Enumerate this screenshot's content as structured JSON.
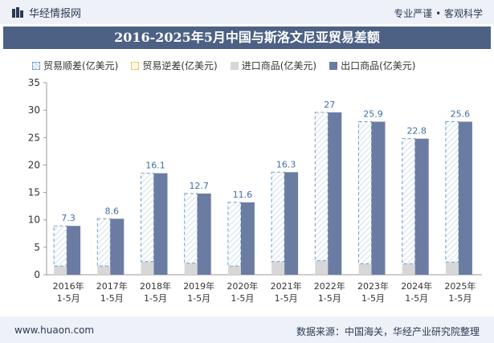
{
  "header": {
    "brand": "华经情报网",
    "slogan": "专业严谨 • 客观科学"
  },
  "footer": {
    "website": "www.huaon.com",
    "source": "数据来源：中国海关，华经产业研究院整理"
  },
  "colors": {
    "export": "#6b7ca3",
    "import": "#d7d7d7",
    "surplus_border": "#6aa0c8",
    "deficit_border": "#e0c46a",
    "label": "#3f6fa6",
    "title_bg": "#4d6185"
  },
  "chart_data": {
    "type": "bar",
    "title": "2016-2025年5月中国与斯洛文尼亚贸易差额",
    "categories": [
      "2016年\n1-5月",
      "2017年\n1-5月",
      "2018年\n1-5月",
      "2019年\n1-5月",
      "2020年\n1-5月",
      "2021年\n1-5月",
      "2022年\n1-5月",
      "2023年\n1-5月",
      "2024年\n1-5月",
      "2025年\n1-5月"
    ],
    "legend": [
      "贸易顺差(亿美元)",
      "贸易逆差(亿美元)",
      "进口商品(亿美元)",
      "出口商品(亿美元)"
    ],
    "series": [
      {
        "name": "贸易顺差(亿美元)",
        "values": [
          7.3,
          8.6,
          16.1,
          12.7,
          11.6,
          16.3,
          27,
          25.9,
          22.8,
          25.6
        ]
      },
      {
        "name": "贸易逆差(亿美元)",
        "values": [
          0,
          0,
          0,
          0,
          0,
          0,
          0,
          0,
          0,
          0
        ]
      },
      {
        "name": "进口商品(亿美元)",
        "values": [
          1.6,
          1.6,
          2.4,
          2.1,
          1.6,
          2.4,
          2.6,
          2.0,
          2.0,
          2.3
        ]
      },
      {
        "name": "出口商品(亿美元)",
        "values": [
          8.9,
          10.2,
          18.5,
          14.8,
          13.2,
          18.7,
          29.6,
          27.9,
          24.8,
          27.9
        ]
      }
    ],
    "ylim": [
      0,
      35
    ],
    "yticks": [
      0,
      5,
      10,
      15,
      20,
      25,
      30,
      35
    ],
    "grid": false,
    "legend_position": "top-left"
  }
}
